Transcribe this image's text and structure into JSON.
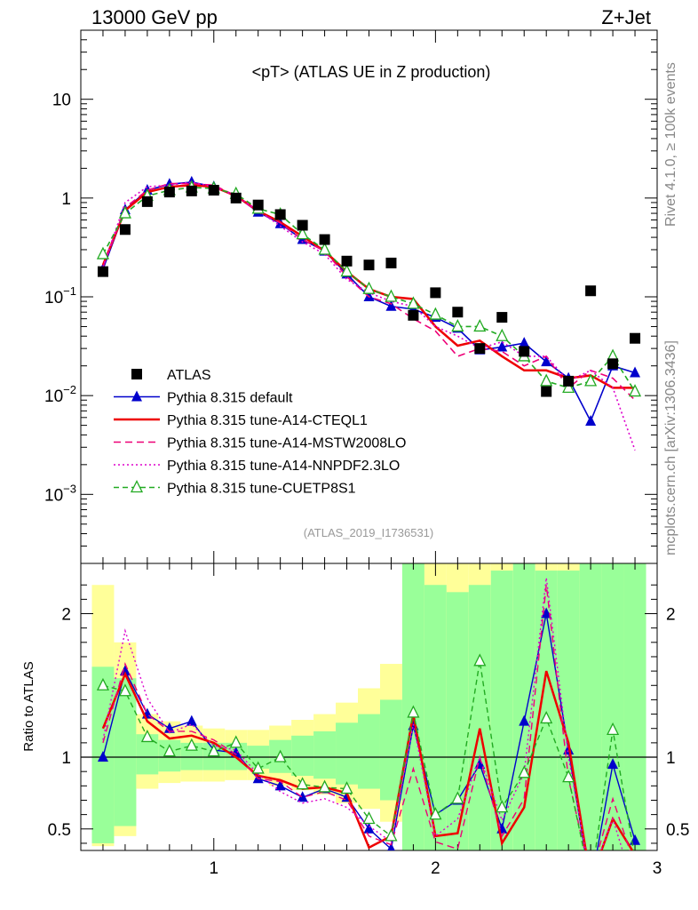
{
  "header": {
    "left": "13000 GeV pp",
    "right": "Z+Jet"
  },
  "side": {
    "rivet": "Rivet 4.1.0, ≥ 100k events",
    "mcplots": "mcplots.cern.ch [arXiv:1306.3436]"
  },
  "colors": {
    "atlas": "#000000",
    "default": "#0000cc",
    "cteql1": "#ee0000",
    "mstw": "#ee0077",
    "nnpdf": "#dd00cc",
    "cuetp": "#22aa22",
    "band_yellow": "#ffff99",
    "band_green": "#99ff99"
  },
  "chart_data": {
    "type": "line",
    "title": "<pT> (ATLAS UE in Z production)",
    "analysis_tag": "(ATLAS_2019_I1736531)",
    "xlabel": "",
    "ylabel": "",
    "yscale": "log",
    "xlim": [
      0.4,
      3.0
    ],
    "ylim": [
      0.0002,
      50
    ],
    "x_ticks": [
      "1",
      "2",
      "3"
    ],
    "x_tick_values": [
      1,
      2,
      3
    ],
    "y_ticks": [
      {
        "value": 10,
        "base": "10",
        "exp": ""
      },
      {
        "value": 1,
        "base": "1",
        "exp": ""
      },
      {
        "value": 0.1,
        "base": "10",
        "exp": "−1"
      },
      {
        "value": 0.01,
        "base": "10",
        "exp": "−2"
      },
      {
        "value": 0.001,
        "base": "10",
        "exp": "−3"
      }
    ],
    "x": [
      0.5,
      0.6,
      0.7,
      0.8,
      0.9,
      1.0,
      1.1,
      1.2,
      1.3,
      1.4,
      1.5,
      1.6,
      1.7,
      1.8,
      1.9,
      2.0,
      2.1,
      2.2,
      2.3,
      2.4,
      2.5,
      2.6,
      2.7,
      2.8,
      2.9
    ],
    "atlas": [
      0.18,
      0.48,
      0.92,
      1.15,
      1.18,
      1.2,
      1.0,
      0.85,
      0.68,
      0.53,
      0.38,
      0.23,
      0.21,
      0.22,
      0.065,
      0.11,
      0.07,
      0.03,
      0.062,
      0.028,
      0.011,
      0.014,
      0.115,
      0.021,
      0.038
    ],
    "legend": [
      {
        "key": "atlas",
        "label": "ATLAS"
      },
      {
        "key": "default",
        "label": "Pythia 8.315 default"
      },
      {
        "key": "cteql1",
        "label": "Pythia 8.315 tune-A14-CTEQL1"
      },
      {
        "key": "mstw",
        "label": "Pythia 8.315 tune-A14-MSTW2008LO"
      },
      {
        "key": "nnpdf",
        "label": "Pythia 8.315 tune-A14-NNPDF2.3LO"
      },
      {
        "key": "cuetp",
        "label": "Pythia 8.315 tune-CUETP8S1"
      }
    ],
    "series": [
      {
        "key": "default",
        "name": "Pythia 8.315 default",
        "marker": "triangle-filled",
        "dash": "",
        "values": [
          0.19,
          0.76,
          1.2,
          1.38,
          1.45,
          1.3,
          1.05,
          0.72,
          0.55,
          0.38,
          0.29,
          0.17,
          0.1,
          0.08,
          0.075,
          0.062,
          0.048,
          0.029,
          0.031,
          0.034,
          0.022,
          0.015,
          0.0055,
          0.02,
          0.017
        ]
      },
      {
        "key": "cteql1",
        "name": "Pythia 8.315 tune-A14-CTEQL1",
        "marker": "none",
        "dash": "",
        "values": [
          0.21,
          0.75,
          1.15,
          1.3,
          1.35,
          1.3,
          1.05,
          0.74,
          0.57,
          0.41,
          0.29,
          0.18,
          0.12,
          0.1,
          0.095,
          0.05,
          0.032,
          0.036,
          0.025,
          0.018,
          0.018,
          0.015,
          0.016,
          0.012,
          0.012
        ]
      },
      {
        "key": "mstw",
        "name": "Pythia 8.315 tune-A14-MSTW2008LO",
        "marker": "none",
        "dash": "8,5",
        "values": [
          0.2,
          0.8,
          1.2,
          1.4,
          1.4,
          1.35,
          1.05,
          0.72,
          0.56,
          0.38,
          0.29,
          0.16,
          0.1,
          0.085,
          0.06,
          0.045,
          0.025,
          0.03,
          0.028,
          0.02,
          0.025,
          0.012,
          0.018,
          0.015,
          0.009
        ]
      },
      {
        "key": "nnpdf",
        "name": "Pythia 8.315 tune-A14-NNPDF2.3LO",
        "marker": "none",
        "dash": "2,3",
        "values": [
          0.2,
          0.9,
          1.3,
          1.35,
          1.45,
          1.3,
          1.05,
          0.75,
          0.52,
          0.36,
          0.27,
          0.15,
          0.11,
          0.09,
          0.08,
          0.05,
          0.04,
          0.03,
          0.035,
          0.025,
          0.025,
          0.014,
          0.018,
          0.012,
          0.0028
        ]
      },
      {
        "key": "cuetp",
        "name": "Pythia 8.315 tune-CUETP8S1",
        "marker": "triangle-open",
        "dash": "6,4",
        "values": [
          0.27,
          0.7,
          1.05,
          1.2,
          1.28,
          1.25,
          1.1,
          0.78,
          0.68,
          0.43,
          0.3,
          0.18,
          0.12,
          0.1,
          0.085,
          0.066,
          0.05,
          0.05,
          0.04,
          0.025,
          0.014,
          0.012,
          0.014,
          0.025,
          0.011
        ]
      }
    ],
    "ratio": {
      "ylabel": "Ratio to ATLAS",
      "ylim": [
        0.35,
        2.35
      ],
      "y_ticks": [
        {
          "value": 2,
          "label": "2"
        },
        {
          "value": 1,
          "label": "1"
        },
        {
          "value": 0.5,
          "label": "0.5"
        }
      ],
      "band_yellow": [
        [
          0.38,
          2.2
        ],
        [
          0.45,
          1.8
        ],
        [
          0.78,
          1.3
        ],
        [
          0.82,
          1.25
        ],
        [
          0.83,
          1.22
        ],
        [
          0.83,
          1.2
        ],
        [
          0.84,
          1.19
        ],
        [
          0.84,
          1.19
        ],
        [
          0.8,
          1.22
        ],
        [
          0.77,
          1.26
        ],
        [
          0.74,
          1.3
        ],
        [
          0.68,
          1.38
        ],
        [
          0.64,
          1.48
        ],
        [
          0.55,
          1.65
        ],
        [
          0.3,
          2.4
        ],
        [
          0.3,
          2.4
        ],
        [
          0.3,
          2.4
        ],
        [
          0.3,
          2.4
        ],
        [
          0.3,
          2.4
        ],
        [
          0.3,
          2.4
        ],
        [
          0.3,
          2.4
        ],
        [
          0.3,
          2.4
        ],
        [
          0.3,
          2.4
        ],
        [
          0.3,
          2.4
        ],
        [
          0.3,
          2.4
        ]
      ],
      "band_green": [
        [
          0.4,
          1.63
        ],
        [
          0.52,
          1.55
        ],
        [
          0.88,
          1.16
        ],
        [
          0.9,
          1.12
        ],
        [
          0.91,
          1.1
        ],
        [
          0.91,
          1.1
        ],
        [
          0.91,
          1.1
        ],
        [
          0.92,
          1.08
        ],
        [
          0.89,
          1.12
        ],
        [
          0.87,
          1.15
        ],
        [
          0.85,
          1.18
        ],
        [
          0.81,
          1.24
        ],
        [
          0.78,
          1.3
        ],
        [
          0.7,
          1.4
        ],
        [
          0.3,
          2.4
        ],
        [
          0.3,
          2.2
        ],
        [
          0.3,
          2.15
        ],
        [
          0.3,
          2.2
        ],
        [
          0.3,
          2.3
        ],
        [
          0.3,
          2.4
        ],
        [
          0.3,
          2.3
        ],
        [
          0.3,
          2.3
        ],
        [
          0.3,
          2.4
        ],
        [
          0.3,
          2.4
        ],
        [
          0.3,
          2.4
        ]
      ],
      "series": [
        {
          "key": "default",
          "values": [
            1.0,
            1.6,
            1.3,
            1.2,
            1.25,
            1.05,
            1.03,
            0.85,
            0.8,
            0.72,
            0.78,
            0.72,
            0.5,
            0.36,
            1.22,
            0.6,
            0.7,
            0.95,
            0.5,
            1.25,
            2.0,
            1.05,
            0.1,
            0.95,
            0.42
          ]
        },
        {
          "key": "cteql1",
          "values": [
            1.2,
            1.58,
            1.25,
            1.13,
            1.15,
            1.1,
            1.0,
            0.87,
            0.84,
            0.78,
            0.79,
            0.75,
            0.37,
            0.45,
            1.3,
            0.45,
            0.47,
            1.2,
            0.4,
            0.65,
            1.6,
            1.1,
            0.14,
            0.57,
            0.32
          ]
        },
        {
          "key": "mstw",
          "values": [
            1.1,
            1.65,
            1.3,
            1.18,
            1.18,
            1.12,
            1.02,
            0.85,
            0.83,
            0.72,
            0.76,
            0.7,
            0.45,
            0.39,
            0.92,
            0.41,
            0.36,
            1.0,
            0.45,
            0.71,
            2.2,
            0.85,
            0.16,
            0.71,
            0.24
          ]
        },
        {
          "key": "nnpdf",
          "values": [
            1.12,
            1.88,
            1.41,
            1.17,
            1.23,
            1.08,
            1.05,
            0.88,
            0.76,
            0.68,
            0.71,
            0.65,
            0.52,
            0.41,
            1.23,
            0.45,
            0.57,
            1.0,
            0.56,
            0.89,
            2.25,
            1.0,
            0.16,
            0.57,
            0.07
          ]
        },
        {
          "key": "cuetp",
          "values": [
            1.5,
            1.46,
            1.14,
            1.04,
            1.08,
            1.04,
            1.1,
            0.92,
            1.0,
            0.81,
            0.79,
            0.78,
            0.57,
            0.45,
            1.31,
            0.6,
            0.71,
            1.67,
            0.65,
            0.89,
            1.27,
            0.86,
            0.12,
            1.19,
            0.29
          ]
        }
      ]
    }
  }
}
